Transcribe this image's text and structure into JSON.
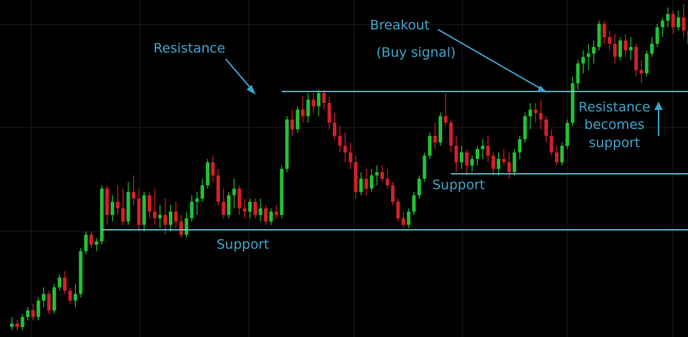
{
  "chart_data": {
    "type": "candlestick",
    "title": "",
    "xlabel": "",
    "ylabel": "",
    "grid": true,
    "colors": {
      "up": "#22c232",
      "down": "#d42027",
      "level": "#6fd6e8",
      "annotation": "#3fa2c8",
      "grid": "#1c1c1c",
      "background": "#000000"
    },
    "ylim": [
      0,
      100
    ],
    "levels": [
      {
        "name": "resistance",
        "value": 73.5,
        "x_start": 51,
        "x_end": 200
      },
      {
        "name": "support_upper",
        "value": 48.5,
        "x_start": 83,
        "x_end": 200
      },
      {
        "name": "support_lower",
        "value": 31.5,
        "x_start": 17,
        "x_end": 200
      }
    ],
    "annotations": {
      "resistance": "Resistance",
      "breakout": "Breakout",
      "buy_signal": "(Buy signal)",
      "support_upper": "Support",
      "support_lower": "Support",
      "rbs_line1": "Resistance",
      "rbs_line2": "becomes",
      "rbs_line3": "support"
    },
    "candles": [
      [
        0,
        2,
        5,
        1,
        3
      ],
      [
        1,
        3,
        4,
        1,
        2
      ],
      [
        2,
        2,
        6,
        1,
        5
      ],
      [
        3,
        5,
        8,
        4,
        7
      ],
      [
        4,
        7,
        9,
        4,
        5
      ],
      [
        5,
        5,
        11,
        4,
        10
      ],
      [
        6,
        10,
        14,
        8,
        12
      ],
      [
        7,
        12,
        13,
        6,
        7
      ],
      [
        8,
        7,
        15,
        6,
        14
      ],
      [
        9,
        14,
        18,
        13,
        17
      ],
      [
        10,
        17,
        19,
        12,
        13
      ],
      [
        11,
        13,
        14,
        9,
        10
      ],
      [
        12,
        10,
        15,
        8,
        12
      ],
      [
        13,
        12,
        26,
        11,
        25
      ],
      [
        14,
        25,
        31,
        24,
        30
      ],
      [
        15,
        30,
        31,
        26,
        27
      ],
      [
        16,
        27,
        29,
        25,
        28
      ],
      [
        17,
        28,
        45,
        27,
        44
      ],
      [
        18,
        44,
        45,
        33,
        36
      ],
      [
        19,
        36,
        42,
        34,
        40
      ],
      [
        20,
        40,
        45,
        36,
        38
      ],
      [
        21,
        38,
        44,
        33,
        34
      ],
      [
        22,
        34,
        46,
        33,
        43
      ],
      [
        23,
        43,
        48,
        39,
        41
      ],
      [
        24,
        41,
        44,
        31,
        33
      ],
      [
        25,
        33,
        43,
        31,
        42
      ],
      [
        26,
        42,
        43,
        35,
        37
      ],
      [
        27,
        37,
        44,
        33,
        35
      ],
      [
        28,
        35,
        39,
        32,
        36
      ],
      [
        29,
        36,
        41,
        30,
        33
      ],
      [
        30,
        33,
        39,
        31,
        37
      ],
      [
        31,
        37,
        40,
        32,
        34
      ],
      [
        32,
        34,
        36,
        29,
        30
      ],
      [
        33,
        30,
        37,
        29,
        35
      ],
      [
        34,
        35,
        42,
        34,
        40
      ],
      [
        35,
        40,
        43,
        36,
        41
      ],
      [
        36,
        41,
        47,
        40,
        45
      ],
      [
        37,
        45,
        53,
        44,
        52
      ],
      [
        38,
        52,
        54,
        46,
        48
      ],
      [
        39,
        48,
        50,
        39,
        40
      ],
      [
        40,
        40,
        44,
        35,
        36
      ],
      [
        41,
        36,
        43,
        35,
        42
      ],
      [
        42,
        42,
        47,
        38,
        44
      ],
      [
        43,
        44,
        45,
        36,
        38
      ],
      [
        44,
        38,
        41,
        35,
        37
      ],
      [
        45,
        37,
        41,
        35,
        40
      ],
      [
        46,
        40,
        41,
        35,
        36
      ],
      [
        47,
        36,
        41,
        34,
        38
      ],
      [
        48,
        38,
        39,
        33,
        34
      ],
      [
        49,
        34,
        38,
        33,
        37
      ],
      [
        50,
        37,
        39,
        35,
        36
      ],
      [
        51,
        36,
        51,
        35,
        50
      ],
      [
        52,
        50,
        66,
        49,
        65
      ],
      [
        53,
        65,
        68,
        60,
        62
      ],
      [
        54,
        62,
        69,
        61,
        68
      ],
      [
        55,
        68,
        72,
        64,
        66
      ],
      [
        56,
        66,
        73,
        64,
        71
      ],
      [
        57,
        71,
        73,
        67,
        69
      ],
      [
        58,
        69,
        74,
        66,
        73
      ],
      [
        59,
        73,
        74,
        68,
        70
      ],
      [
        60,
        70,
        72,
        62,
        64
      ],
      [
        61,
        64,
        67,
        59,
        60
      ],
      [
        62,
        60,
        63,
        55,
        57
      ],
      [
        63,
        57,
        61,
        52,
        55
      ],
      [
        64,
        55,
        58,
        50,
        52
      ],
      [
        65,
        52,
        54,
        41,
        43
      ],
      [
        66,
        43,
        49,
        42,
        47
      ],
      [
        67,
        47,
        50,
        42,
        44
      ],
      [
        68,
        44,
        50,
        43,
        48
      ],
      [
        69,
        48,
        51,
        45,
        49
      ],
      [
        70,
        49,
        51,
        46,
        47
      ],
      [
        71,
        47,
        50,
        44,
        45
      ],
      [
        72,
        45,
        46,
        39,
        40
      ],
      [
        73,
        40,
        41,
        34,
        35
      ],
      [
        74,
        35,
        37,
        32,
        33
      ],
      [
        75,
        33,
        38,
        32,
        37
      ],
      [
        76,
        37,
        43,
        36,
        42
      ],
      [
        77,
        42,
        48,
        41,
        47
      ],
      [
        78,
        47,
        55,
        46,
        54
      ],
      [
        79,
        54,
        61,
        53,
        60
      ],
      [
        80,
        60,
        64,
        56,
        58
      ],
      [
        81,
        58,
        67,
        57,
        66
      ],
      [
        82,
        66,
        73,
        63,
        64
      ],
      [
        83,
        64,
        65,
        55,
        57
      ],
      [
        84,
        57,
        60,
        49,
        52
      ],
      [
        85,
        52,
        57,
        50,
        55
      ],
      [
        86,
        55,
        56,
        48,
        51
      ],
      [
        87,
        51,
        54,
        49,
        53
      ],
      [
        88,
        53,
        57,
        51,
        56
      ],
      [
        89,
        56,
        59,
        53,
        57
      ],
      [
        90,
        57,
        60,
        52,
        54
      ],
      [
        91,
        54,
        55,
        48,
        50
      ],
      [
        92,
        50,
        55,
        48,
        53
      ],
      [
        93,
        53,
        56,
        51,
        52
      ],
      [
        94,
        52,
        55,
        47,
        49
      ],
      [
        95,
        49,
        56,
        48,
        55
      ],
      [
        96,
        55,
        60,
        53,
        59
      ],
      [
        97,
        59,
        67,
        58,
        66
      ],
      [
        98,
        66,
        70,
        62,
        68
      ],
      [
        99,
        68,
        70,
        64,
        67
      ],
      [
        100,
        67,
        71,
        62,
        65
      ],
      [
        101,
        65,
        66,
        58,
        60
      ],
      [
        102,
        60,
        62,
        54,
        55
      ],
      [
        103,
        55,
        57,
        51,
        52
      ],
      [
        104,
        52,
        58,
        51,
        57
      ],
      [
        105,
        57,
        65,
        56,
        64
      ],
      [
        106,
        64,
        78,
        63,
        76
      ],
      [
        107,
        76,
        83,
        74,
        82
      ],
      [
        108,
        82,
        86,
        79,
        84
      ],
      [
        109,
        84,
        88,
        80,
        85
      ],
      [
        110,
        85,
        89,
        82,
        87
      ],
      [
        111,
        87,
        95,
        86,
        94
      ],
      [
        112,
        94,
        95,
        88,
        90
      ],
      [
        113,
        90,
        92,
        86,
        88
      ],
      [
        114,
        88,
        91,
        82,
        84
      ],
      [
        115,
        84,
        90,
        83,
        89
      ],
      [
        116,
        89,
        91,
        84,
        86
      ],
      [
        117,
        86,
        90,
        83,
        87
      ],
      [
        118,
        87,
        88,
        78,
        80
      ],
      [
        119,
        80,
        83,
        76,
        79
      ],
      [
        120,
        79,
        86,
        78,
        85
      ],
      [
        121,
        85,
        90,
        84,
        88
      ],
      [
        122,
        88,
        94,
        87,
        93
      ],
      [
        123,
        93,
        96,
        90,
        95
      ],
      [
        124,
        95,
        99,
        93,
        97
      ],
      [
        125,
        97,
        98,
        91,
        93
      ],
      [
        126,
        93,
        98,
        92,
        96
      ],
      [
        127,
        96,
        100,
        90,
        92
      ],
      [
        128,
        92,
        100,
        86,
        88
      ]
    ]
  }
}
